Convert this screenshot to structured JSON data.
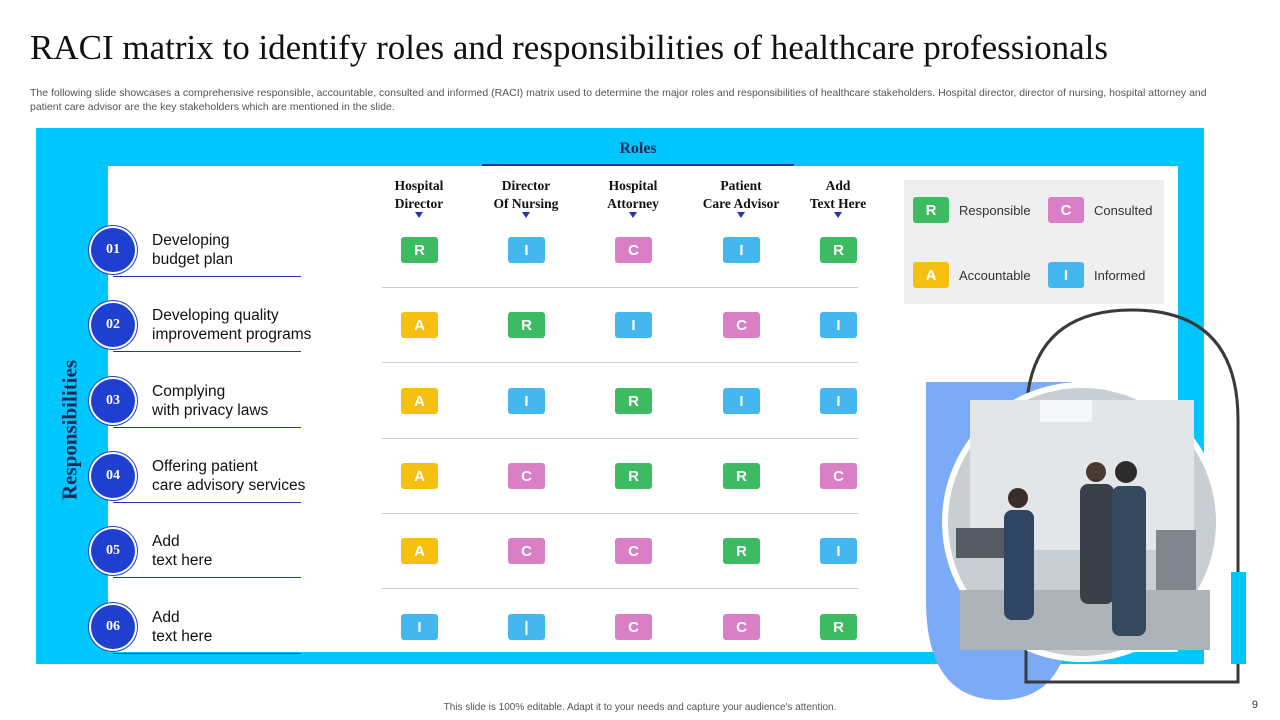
{
  "slide": {
    "title": "RACI matrix to identify roles and responsibilities of healthcare professionals",
    "subtitle": "The following slide showcases a comprehensive responsible, accountable, consulted and informed (RACI) matrix used to determine the major roles and responsibilities of healthcare stakeholders. Hospital director, director of nursing, hospital attorney and patient care advisor are the key stakeholders which are mentioned in the slide.",
    "roles_label": "Roles",
    "responsibilities_label": "Responsibilities",
    "footer": "This slide is 100% editable. Adapt it to your needs and capture your audience's attention.",
    "page_number": "9"
  },
  "columns": [
    {
      "line1": "Hospital",
      "line2": "Director"
    },
    {
      "line1": "Director",
      "line2": "Of Nursing"
    },
    {
      "line1": "Hospital",
      "line2": "Attorney"
    },
    {
      "line1": "Patient",
      "line2": "Care Advisor"
    },
    {
      "line1": "Add",
      "line2": "Text Here"
    }
  ],
  "rows": [
    {
      "num": "01",
      "line1": "Developing",
      "line2": "budget plan",
      "cells": [
        "R",
        "I",
        "C",
        "I",
        "R"
      ]
    },
    {
      "num": "02",
      "line1": "Developing quality",
      "line2": "improvement programs",
      "cells": [
        "A",
        "R",
        "I",
        "C",
        "I"
      ]
    },
    {
      "num": "03",
      "line1": "Complying",
      "line2": "with privacy laws",
      "cells": [
        "A",
        "I",
        "R",
        "I",
        "I"
      ]
    },
    {
      "num": "04",
      "line1": "Offering patient",
      "line2": "care advisory services",
      "cells": [
        "A",
        "C",
        "R",
        "R",
        "C"
      ]
    },
    {
      "num": "05",
      "line1": "Add",
      "line2": "text here",
      "cells": [
        "A",
        "C",
        "C",
        "R",
        "I"
      ]
    },
    {
      "num": "06",
      "line1": "Add",
      "line2": "text here",
      "cells": [
        "I",
        "|",
        "C",
        "C",
        "R"
      ]
    }
  ],
  "legend": [
    {
      "letter": "R",
      "label": "Responsible"
    },
    {
      "letter": "C",
      "label": "Consulted"
    },
    {
      "letter": "A",
      "label": "Accountable"
    },
    {
      "letter": "I",
      "label": "Informed"
    }
  ],
  "colors": {
    "R": "#3dbb63",
    "A": "#f7bf0f",
    "C": "#da7fc6",
    "I": "#44b7ee",
    "|": "#44b7ee",
    "accent_cyan": "#00c6ff",
    "accent_blue": "#1e3fd0",
    "photo_blob": "#7baaf7"
  }
}
